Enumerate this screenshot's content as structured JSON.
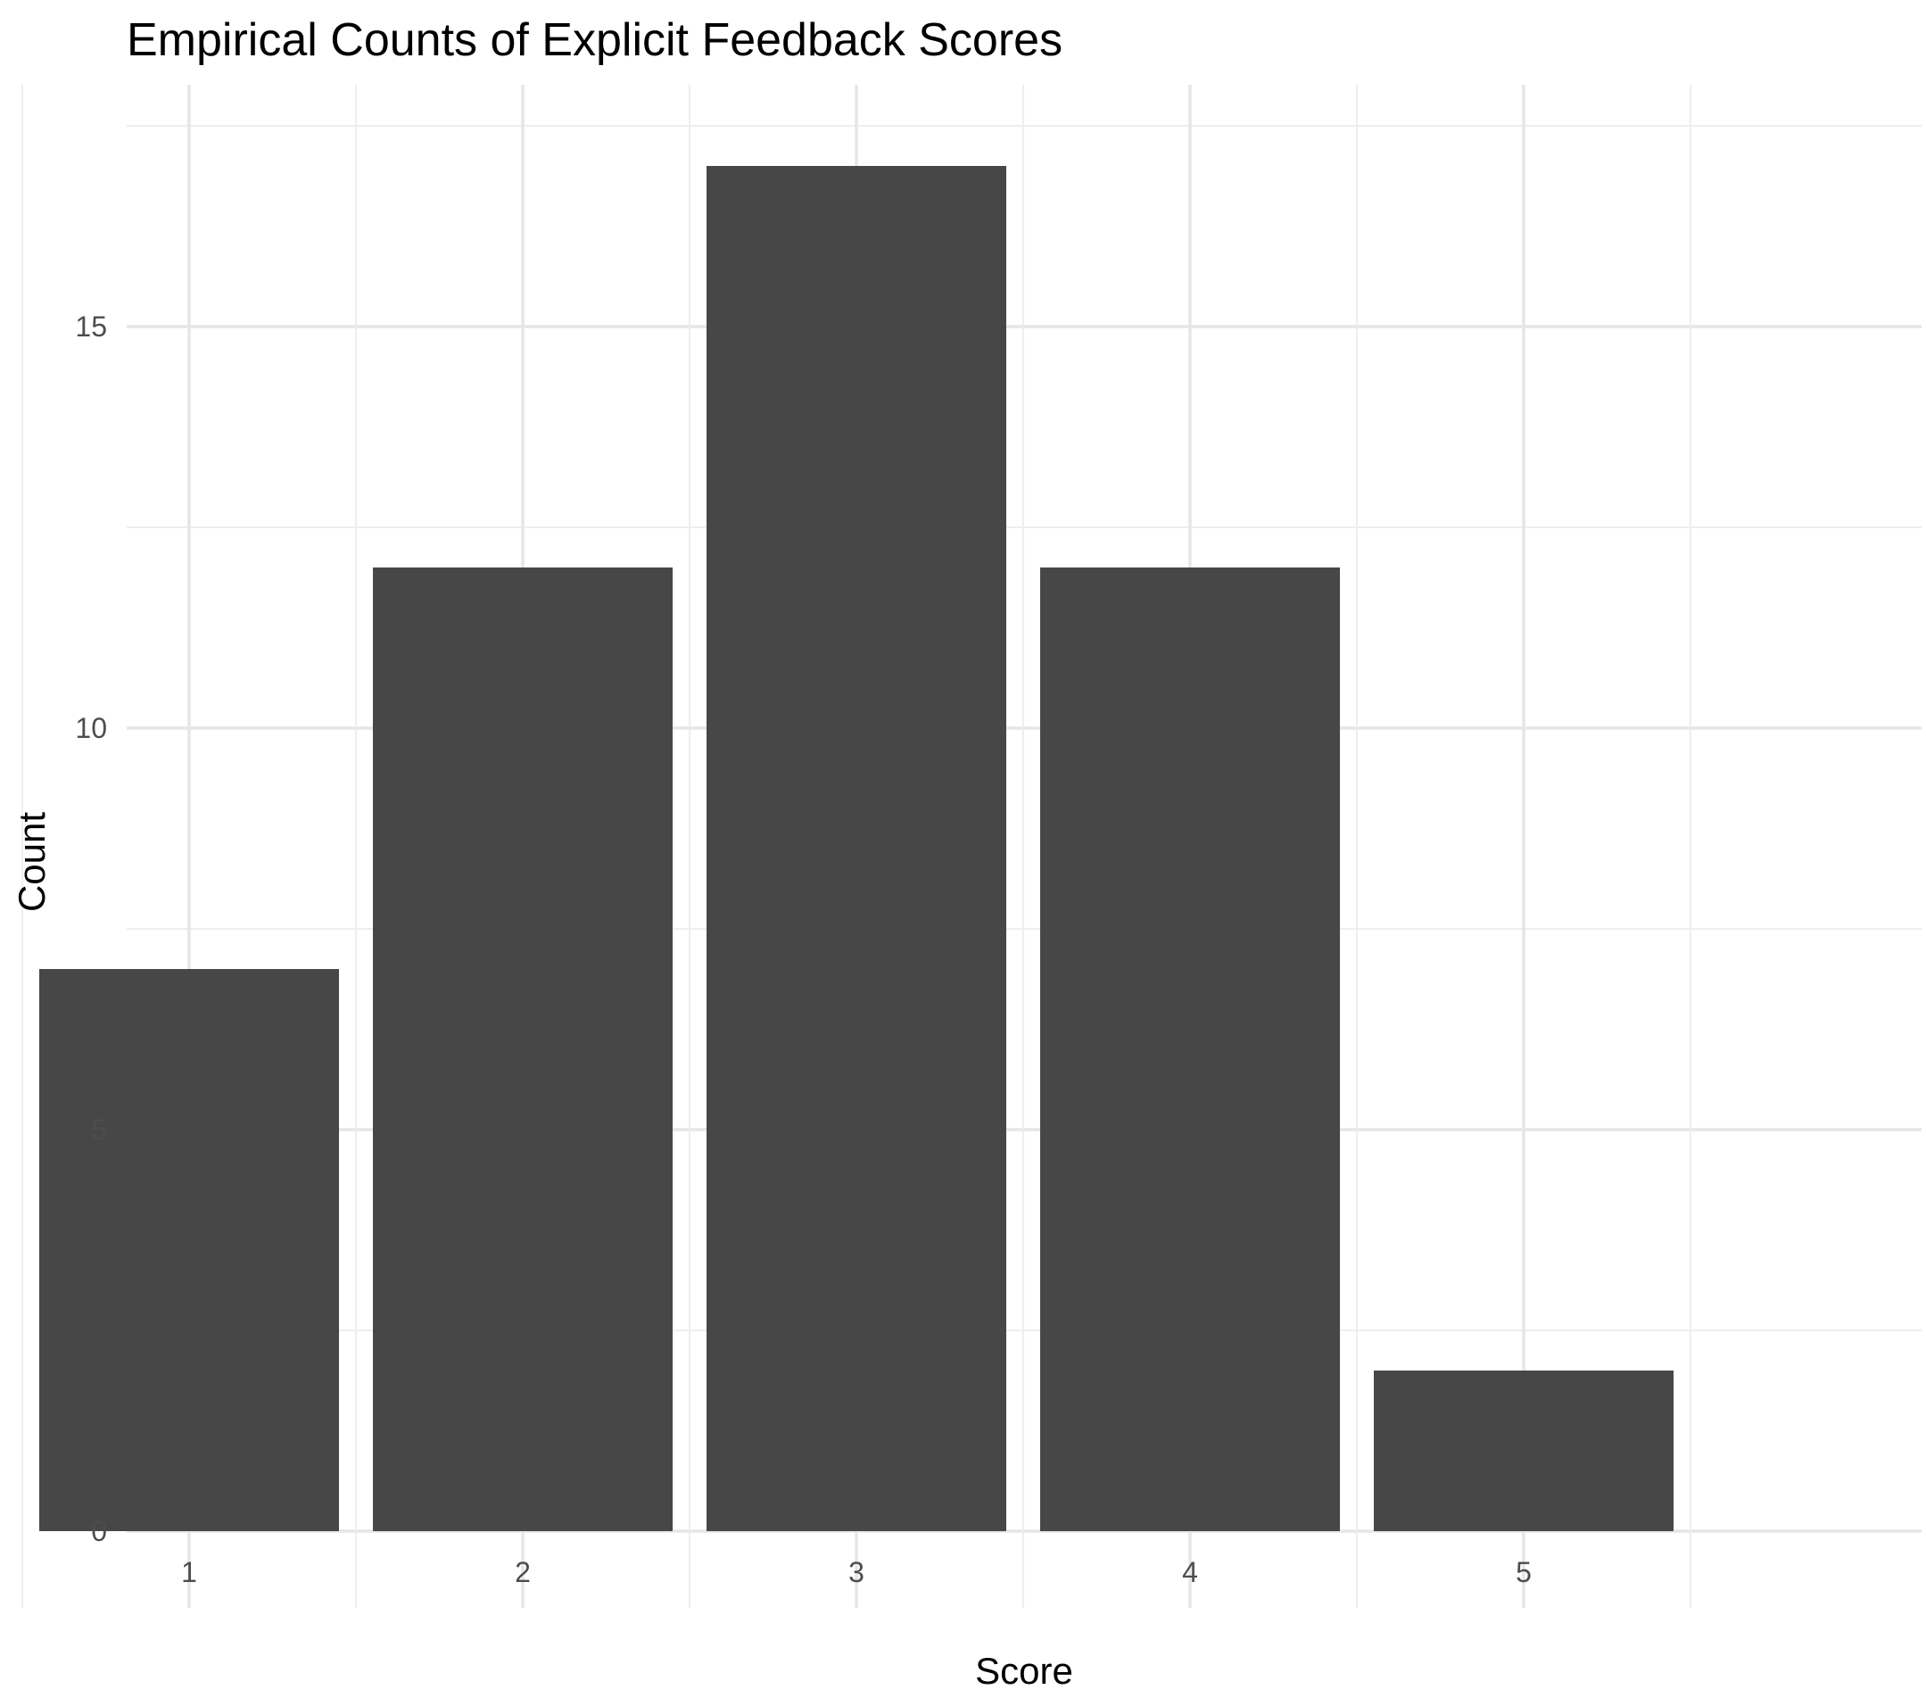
{
  "chart_data": {
    "type": "bar",
    "title": "Empirical Counts of Explicit Feedback Scores",
    "xlabel": "Score",
    "ylabel": "Count",
    "categories": [
      "1",
      "2",
      "3",
      "4",
      "5"
    ],
    "values": [
      7,
      12,
      17,
      12,
      2
    ],
    "ylim": [
      0,
      17.5
    ],
    "yticks": [
      0,
      5,
      10,
      15
    ],
    "grid": true,
    "legend": "none",
    "bar_color": "#474747",
    "grid_color": "#e6e6e6",
    "background": "#ffffff"
  }
}
